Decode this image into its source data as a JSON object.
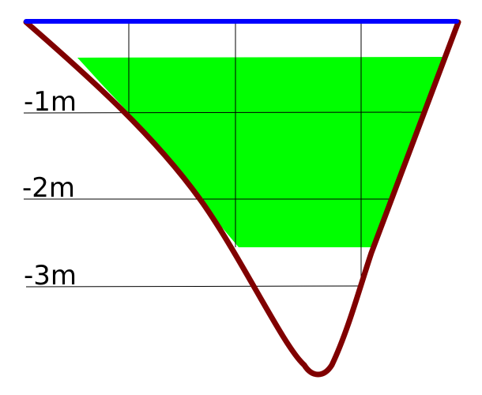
{
  "diagram": {
    "depth_labels": [
      "-1m",
      "-2m",
      "-3m"
    ],
    "colors": {
      "water_surface": "#0000ff",
      "channel_bed": "#800000",
      "flow_area": "#00ff00",
      "grid": "#000000"
    }
  }
}
